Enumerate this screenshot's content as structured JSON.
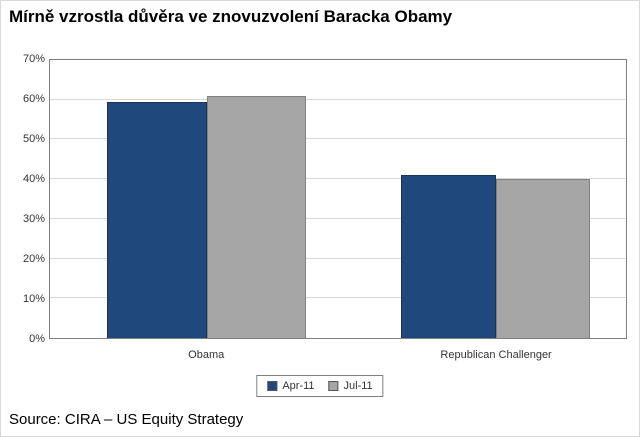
{
  "source": "Source: CIRA – US Equity Strategy",
  "chart_data": {
    "type": "bar",
    "title": "Mírně vzrostla důvěra ve znovuzvolení Baracka Obamy",
    "categories": [
      "Obama",
      "Republican Challenger"
    ],
    "series": [
      {
        "name": "Apr-11",
        "values": [
          59.5,
          41
        ],
        "color": "#1F497D",
        "border": "#16365C"
      },
      {
        "name": "Jul-11",
        "values": [
          61,
          40
        ],
        "color": "#A6A6A6",
        "border": "#808080"
      }
    ],
    "ylim": [
      0,
      70
    ],
    "yticks": [
      0,
      10,
      20,
      30,
      40,
      50,
      60,
      70
    ],
    "ytick_suffix": "%",
    "grid": true,
    "legend_position": "bottom"
  }
}
